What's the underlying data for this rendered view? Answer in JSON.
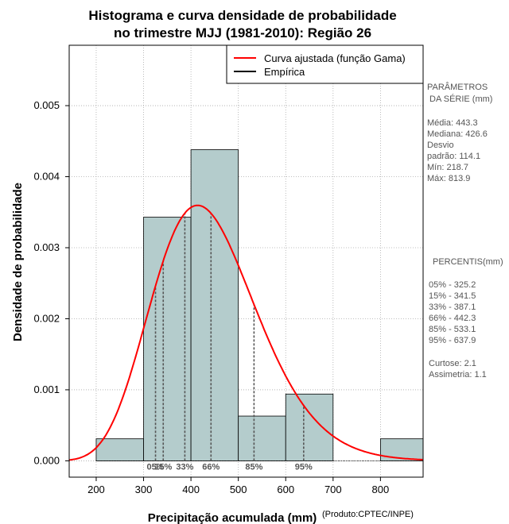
{
  "chart_data": {
    "type": "histogram",
    "title_line1": "Histograma e curva densidade de probabilidade",
    "title_line2": "no trimestre MJJ (1981-2010): Região 26",
    "xlabel": "Precipitação acumulada (mm)",
    "ylabel": "Densidade de probabilidade",
    "credit": "(Produto:CPTEC/INPE)",
    "xlim": [
      143,
      890
    ],
    "ylim": [
      -0.00023,
      0.00585
    ],
    "x_ticks": [
      200,
      300,
      400,
      500,
      600,
      700,
      800
    ],
    "x_tick_labels": [
      "200",
      "300",
      "400",
      "500",
      "600",
      "700",
      "800"
    ],
    "y_ticks": [
      0,
      0.001,
      0.002,
      0.003,
      0.004,
      0.005
    ],
    "y_tick_labels": [
      "0.000",
      "0.001",
      "0.002",
      "0.003",
      "0.004",
      "0.005"
    ],
    "grid": true,
    "bins": [
      {
        "x0": 200,
        "x1": 300,
        "density": 0.00031
      },
      {
        "x0": 300,
        "x1": 400,
        "density": 0.00343
      },
      {
        "x0": 400,
        "x1": 500,
        "density": 0.00438
      },
      {
        "x0": 500,
        "x1": 600,
        "density": 0.00063
      },
      {
        "x0": 600,
        "x1": 700,
        "density": 0.00094
      },
      {
        "x0": 800,
        "x1": 900,
        "density": 0.00031
      }
    ],
    "gamma_fit": {
      "shape": 15.09,
      "scale": 29.38
    },
    "percentile_lines": [
      {
        "label": "05%",
        "value": 325.2
      },
      {
        "label": "15%",
        "value": 341.5
      },
      {
        "label": "33%",
        "value": 387.1
      },
      {
        "label": "66%",
        "value": 442.3
      },
      {
        "label": "85%",
        "value": 533.1
      },
      {
        "label": "95%",
        "value": 637.9
      }
    ],
    "legend": [
      {
        "label": "Curva ajustada (função Gama)",
        "color": "#ff0000"
      },
      {
        "label": "Empírica",
        "color": "#000000"
      }
    ],
    "colors": {
      "bar_fill": "#b4cccc",
      "curve": "#ff0000",
      "percentile_line": "#555555",
      "grid": "#aaaaaa"
    }
  },
  "side_panel": {
    "params_lines": [
      "PARÂMETROS",
      "DA SÉRIE (mm)",
      "",
      "Média:  443.3",
      "Mediana:  426.6",
      "Desvio",
      "padrão:  114.1",
      "Mín:  218.7",
      "Máx:  813.9"
    ],
    "pct_lines": [
      "PERCENTIS(mm)",
      "",
      "05% -   325.2",
      "15% -   341.5",
      "33% -   387.1",
      "66% -   442.3",
      "85% -   533.1",
      "95% -   637.9",
      "",
      "Curtose:   2.1",
      "Assimetria:   1.1"
    ]
  }
}
